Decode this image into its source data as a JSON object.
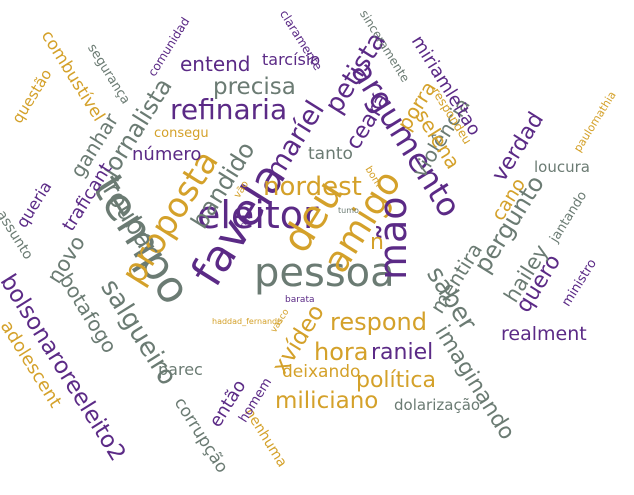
{
  "palette": {
    "purple": "#5b2a86",
    "gold": "#d4a12a",
    "gray": "#6b7b73"
  },
  "words": [
    {
      "text": "eleitor",
      "color": "purple"
    },
    {
      "text": "tempo",
      "color": "gray"
    },
    {
      "text": "favela",
      "color": "purple"
    },
    {
      "text": "pessoa",
      "color": "gray"
    },
    {
      "text": "deu",
      "color": "gold"
    },
    {
      "text": "amigo",
      "color": "gold"
    },
    {
      "text": "mão",
      "color": "purple"
    },
    {
      "text": "argumento",
      "color": "purple"
    },
    {
      "text": "proposta",
      "color": "gold"
    },
    {
      "text": "salgueiro",
      "color": "gray"
    },
    {
      "text": "refinaria",
      "color": "purple"
    },
    {
      "text": "bolsonaroreeleito2",
      "color": "purple"
    },
    {
      "text": "nordest",
      "color": "gold"
    },
    {
      "text": "maríel",
      "color": "purple"
    },
    {
      "text": "petista",
      "color": "purple"
    },
    {
      "text": "bandido",
      "color": "gray"
    },
    {
      "text": "roubar",
      "color": "gray"
    },
    {
      "text": "precisa",
      "color": "gray"
    },
    {
      "text": "jornalista",
      "color": "gray"
    },
    {
      "text": "xvídeo",
      "color": "gold"
    },
    {
      "text": "respond",
      "color": "gold"
    },
    {
      "text": "hora",
      "color": "gold"
    },
    {
      "text": "raniel",
      "color": "purple"
    },
    {
      "text": "política",
      "color": "gold"
    },
    {
      "text": "miliciano",
      "color": "gold"
    },
    {
      "text": "saber",
      "color": "gray"
    },
    {
      "text": "imaginando",
      "color": "gray"
    },
    {
      "text": "pergunto",
      "color": "gray"
    },
    {
      "text": "verdad",
      "color": "purple"
    },
    {
      "text": "cano",
      "color": "gold"
    },
    {
      "text": "quero",
      "color": "purple"
    },
    {
      "text": "hailey",
      "color": "gray"
    },
    {
      "text": "mentira",
      "color": "gray"
    },
    {
      "text": "violência",
      "color": "gray"
    },
    {
      "text": "selena",
      "color": "gold"
    },
    {
      "text": "porra",
      "color": "gold"
    },
    {
      "text": "ceará",
      "color": "purple"
    },
    {
      "text": "miriamleitao",
      "color": "purple"
    },
    {
      "text": "entend",
      "color": "purple"
    },
    {
      "text": "tarcísio",
      "color": "purple"
    },
    {
      "text": "número",
      "color": "purple"
    },
    {
      "text": "tanto",
      "color": "gray"
    },
    {
      "text": "botafogo",
      "color": "gray"
    },
    {
      "text": "novo",
      "color": "gray"
    },
    {
      "text": "ganhar",
      "color": "gray"
    },
    {
      "text": "traficant",
      "color": "purple"
    },
    {
      "text": "queria",
      "color": "purple"
    },
    {
      "text": "adolescent",
      "color": "gold"
    },
    {
      "text": "combustível",
      "color": "gold"
    },
    {
      "text": "questão",
      "color": "gold"
    },
    {
      "text": "segurança",
      "color": "gray"
    },
    {
      "text": "comunidad",
      "color": "purple"
    },
    {
      "text": "claramente",
      "color": "purple"
    },
    {
      "text": "sinceramente",
      "color": "gray"
    },
    {
      "text": "respondeu",
      "color": "gold"
    },
    {
      "text": "paulomathia",
      "color": "gold"
    },
    {
      "text": "loucura",
      "color": "gray"
    },
    {
      "text": "jantando",
      "color": "gray"
    },
    {
      "text": "ministro",
      "color": "purple"
    },
    {
      "text": "realment",
      "color": "purple"
    },
    {
      "text": "dolarização",
      "color": "gray"
    },
    {
      "text": "nenhuma",
      "color": "gold"
    },
    {
      "text": "deixando",
      "color": "gold"
    },
    {
      "text": "então",
      "color": "purple"
    },
    {
      "text": "homem",
      "color": "purple"
    },
    {
      "text": "corrupção",
      "color": "gray"
    },
    {
      "text": "parec",
      "color": "gray"
    },
    {
      "text": "consegu",
      "color": "gold"
    },
    {
      "text": "assunto",
      "color": "gray"
    },
    {
      "text": "n",
      "color": "gold"
    },
    {
      "text": "bom",
      "color": "gold"
    },
    {
      "text": "tumo",
      "color": "gray"
    },
    {
      "text": "vão",
      "color": "gold"
    },
    {
      "text": "nao",
      "color": "purple"
    },
    {
      "text": "barata",
      "color": "purple"
    },
    {
      "text": "haddad_fernando",
      "color": "gold"
    },
    {
      "text": "vasco",
      "color": "gold"
    }
  ]
}
